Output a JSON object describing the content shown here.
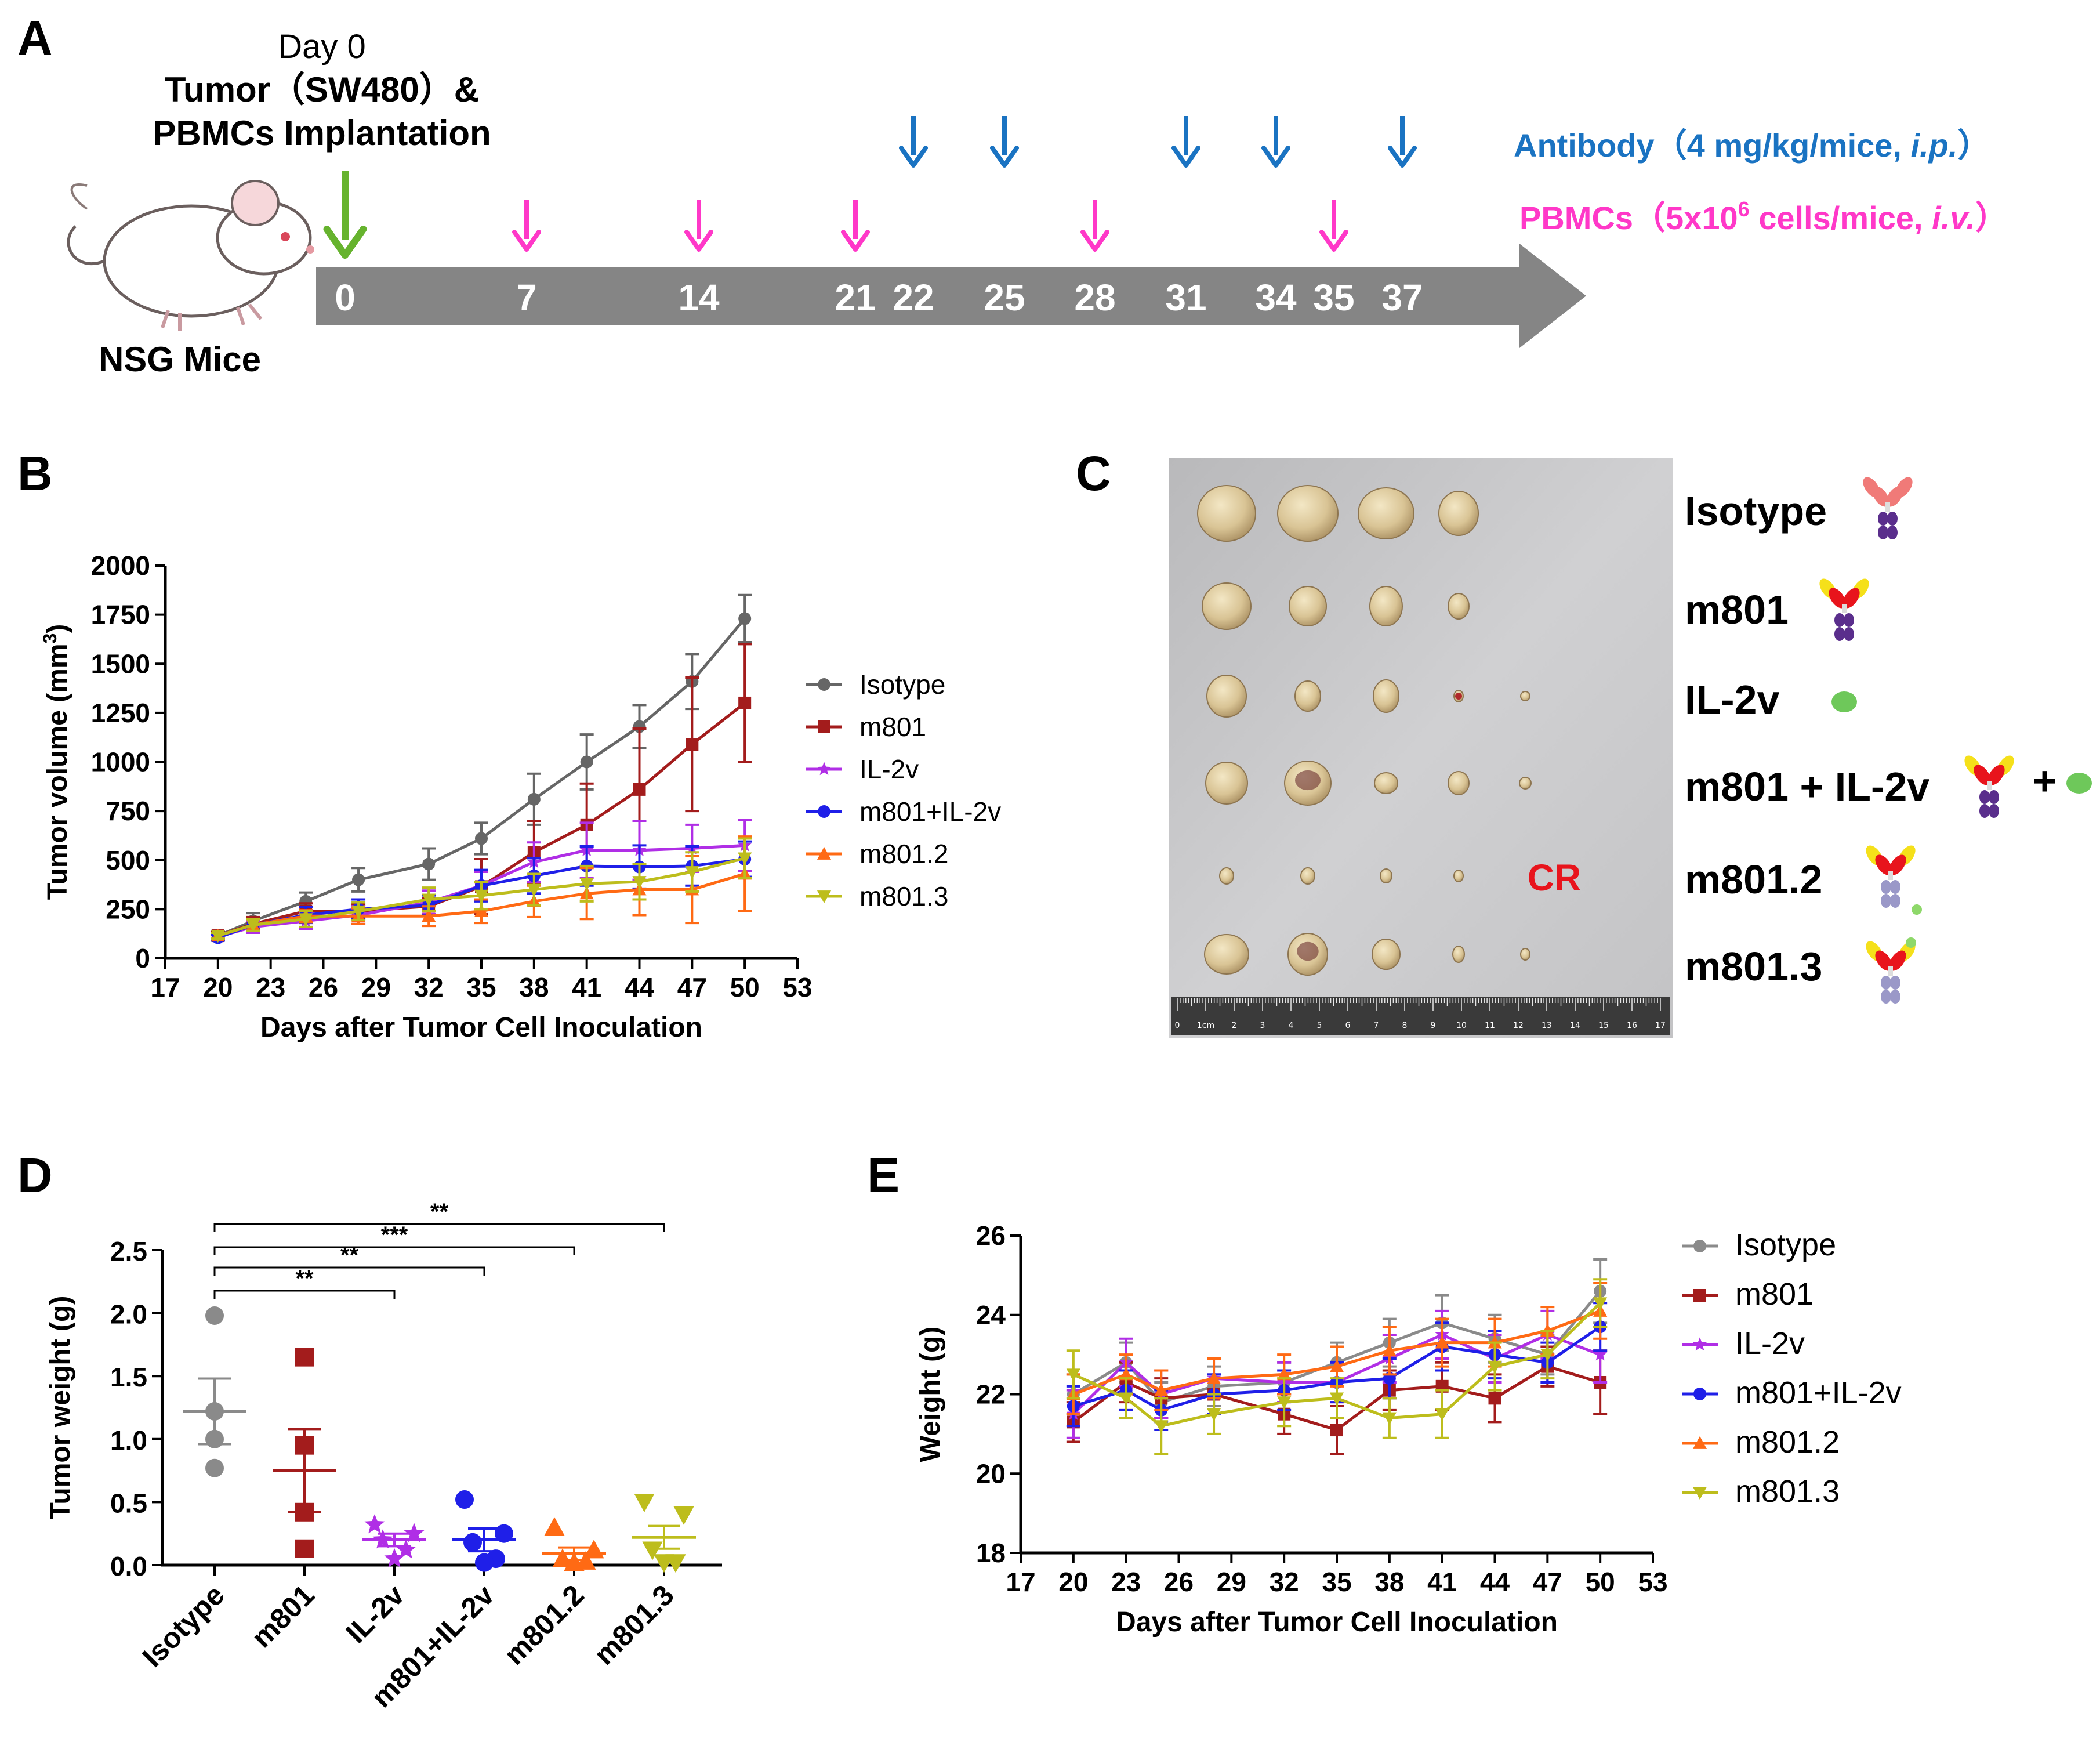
{
  "panels": {
    "a": "A",
    "b": "B",
    "c": "C",
    "d": "D",
    "e": "E"
  },
  "timeline": {
    "day0": "Day 0",
    "title1": "Tumor（SW480）&",
    "title2": "PBMCs Implantation",
    "mouse_label": "NSG Mice",
    "antibody_text": "Antibody（4 mg/kg/mice, ",
    "antibody_italic": "i.p.",
    "antibody_end": "）",
    "pbmc_text": "PBMCs（5x10",
    "pbmc_sup": "6",
    "pbmc_text2": " cells/mice, ",
    "pbmc_italic": "i.v.",
    "pbmc_end": "）",
    "days": [
      "0",
      "7",
      "14",
      "21",
      "22",
      "25",
      "28",
      "31",
      "34",
      "35",
      "37"
    ],
    "highlight_day": "22",
    "antibody_days": [
      22,
      25,
      31,
      34,
      37
    ],
    "pbmc_days": [
      7,
      14,
      21,
      28,
      35
    ],
    "implant_day": 0,
    "colors": {
      "antibody": "#1a73c2",
      "pbmc": "#ff38c8",
      "implant": "#66b32e",
      "highlight": "#f5e800",
      "bar": "#858585"
    }
  },
  "photo": {
    "cr_label": "CR",
    "groups": [
      "Isotype",
      "m801",
      "IL-2v",
      "m801 + IL-2v",
      "m801.2",
      "m801.3"
    ],
    "plus": "+",
    "ruler_labels": [
      "0",
      "1cm",
      "2",
      "3",
      "4",
      "5",
      "6",
      "7",
      "8",
      "9",
      "10",
      "11",
      "12",
      "13",
      "14",
      "15",
      "16",
      "17"
    ]
  },
  "chart_data": [
    {
      "id": "B",
      "type": "line",
      "title": "",
      "xlabel": "Days after Tumor Cell Inoculation",
      "ylabel": "Tumor volume (mm",
      "ylabel_sup": "3",
      "ylabel_end": ")",
      "xlim": [
        17,
        53
      ],
      "ylim": [
        0,
        2000
      ],
      "xticks": [
        17,
        20,
        23,
        26,
        29,
        32,
        35,
        38,
        41,
        44,
        47,
        50,
        53
      ],
      "yticks": [
        0,
        250,
        500,
        750,
        1000,
        1250,
        1500,
        1750,
        2000
      ],
      "x": [
        20,
        22,
        25,
        28,
        32,
        35,
        38,
        41,
        44,
        47,
        50
      ],
      "series": [
        {
          "name": "Isotype",
          "color": "#666666",
          "marker": "circle",
          "values": [
            115,
            190,
            290,
            400,
            480,
            610,
            810,
            1000,
            1180,
            1410,
            1730
          ],
          "err": [
            20,
            40,
            45,
            60,
            80,
            80,
            130,
            140,
            110,
            140,
            120
          ]
        },
        {
          "name": "m801",
          "color": "#a31c1c",
          "marker": "square",
          "values": [
            115,
            175,
            240,
            240,
            265,
            365,
            540,
            680,
            860,
            1090,
            1300
          ],
          "err": [
            18,
            35,
            40,
            35,
            40,
            140,
            160,
            210,
            310,
            340,
            300
          ]
        },
        {
          "name": "IL-2v",
          "color": "#b02ee6",
          "marker": "star",
          "values": [
            110,
            160,
            190,
            220,
            285,
            370,
            490,
            550,
            550,
            560,
            575
          ],
          "err": [
            15,
            30,
            40,
            45,
            60,
            70,
            100,
            140,
            150,
            120,
            130
          ]
        },
        {
          "name": "m801+IL-2v",
          "color": "#1f1fe8",
          "marker": "circle",
          "values": [
            105,
            170,
            220,
            250,
            270,
            370,
            420,
            470,
            465,
            470,
            505
          ],
          "err": [
            15,
            30,
            40,
            50,
            50,
            80,
            90,
            100,
            110,
            100,
            90
          ]
        },
        {
          "name": "m801.2",
          "color": "#ff6a14",
          "marker": "triangle",
          "values": [
            115,
            170,
            215,
            215,
            215,
            240,
            290,
            330,
            350,
            350,
            430
          ],
          "err": [
            15,
            30,
            30,
            40,
            50,
            60,
            80,
            130,
            130,
            170,
            190
          ]
        },
        {
          "name": "m801.3",
          "color": "#bdbd1c",
          "marker": "triangle-down",
          "values": [
            115,
            170,
            200,
            240,
            300,
            320,
            350,
            380,
            390,
            440,
            510
          ],
          "err": [
            15,
            30,
            40,
            45,
            60,
            70,
            80,
            90,
            90,
            100,
            100
          ]
        }
      ]
    },
    {
      "id": "D",
      "type": "scatter",
      "ylabel": "Tumor weight (g)",
      "ylim": [
        0,
        2.5
      ],
      "yticks": [
        0.0,
        0.5,
        1.0,
        1.5,
        2.0,
        2.5
      ],
      "ytick_labels": [
        "0.0",
        "0.5",
        "1.0",
        "1.5",
        "2.0",
        "2.5"
      ],
      "categories": [
        "Isotype",
        "m801",
        "IL-2v",
        "m801+IL-2v",
        "m801.2",
        "m801.3"
      ],
      "groups": [
        {
          "name": "Isotype",
          "color": "#8a8a8a",
          "marker": "circle",
          "points": [
            1.98,
            1.22,
            1.0,
            0.77
          ],
          "mean": 1.22,
          "sem": 0.26
        },
        {
          "name": "m801",
          "color": "#a31c1c",
          "marker": "square",
          "points": [
            1.65,
            0.95,
            0.42,
            0.13
          ],
          "mean": 0.75,
          "sem": 0.33
        },
        {
          "name": "IL-2v",
          "color": "#b02ee6",
          "marker": "star",
          "points": [
            0.32,
            0.25,
            0.2,
            0.12,
            0.05
          ],
          "mean": 0.2,
          "sem": 0.05
        },
        {
          "name": "m801+IL-2v",
          "color": "#1f1fe8",
          "marker": "circle",
          "points": [
            0.52,
            0.25,
            0.18,
            0.05,
            0.02
          ],
          "mean": 0.2,
          "sem": 0.09
        },
        {
          "name": "m801.2",
          "color": "#ff6a14",
          "marker": "triangle",
          "points": [
            0.3,
            0.12,
            0.05,
            0.03,
            0.02
          ],
          "mean": 0.09,
          "sem": 0.05
        },
        {
          "name": "m801.3",
          "color": "#bdbd1c",
          "marker": "triangle-down",
          "points": [
            0.5,
            0.4,
            0.12,
            0.02,
            0.02
          ],
          "mean": 0.22,
          "sem": 0.09
        }
      ],
      "significance": [
        {
          "label": "**",
          "from": "Isotype",
          "to": "IL-2v"
        },
        {
          "label": "**",
          "from": "Isotype",
          "to": "m801+IL-2v"
        },
        {
          "label": "***",
          "from": "Isotype",
          "to": "m801.2"
        },
        {
          "label": "**",
          "from": "Isotype",
          "to": "m801.3"
        }
      ]
    },
    {
      "id": "E",
      "type": "line",
      "xlabel": "Days after Tumor Cell Inoculation",
      "ylabel": "Weight (g)",
      "xlim": [
        17,
        53
      ],
      "ylim": [
        18,
        26
      ],
      "xticks": [
        17,
        20,
        23,
        26,
        29,
        32,
        35,
        38,
        41,
        44,
        47,
        50,
        53
      ],
      "yticks": [
        18,
        20,
        22,
        24,
        26
      ],
      "x": [
        20,
        23,
        25,
        28,
        32,
        35,
        38,
        41,
        44,
        47,
        50
      ],
      "series": [
        {
          "name": "Isotype",
          "color": "#8a8a8a",
          "marker": "circle",
          "values": [
            22.0,
            22.8,
            21.8,
            22.2,
            22.3,
            22.8,
            23.3,
            23.8,
            23.4,
            23.0,
            24.6
          ],
          "err": [
            0.5,
            0.5,
            0.5,
            0.5,
            0.5,
            0.5,
            0.6,
            0.7,
            0.6,
            0.5,
            0.8
          ]
        },
        {
          "name": "m801",
          "color": "#a31c1c",
          "marker": "square",
          "values": [
            21.3,
            22.3,
            21.9,
            22.0,
            21.5,
            21.1,
            22.1,
            22.2,
            21.9,
            22.7,
            22.3
          ],
          "err": [
            0.5,
            0.5,
            0.5,
            0.5,
            0.5,
            0.6,
            0.5,
            0.6,
            0.6,
            0.5,
            0.8
          ]
        },
        {
          "name": "IL-2v",
          "color": "#b02ee6",
          "marker": "star",
          "values": [
            21.5,
            22.8,
            22.0,
            22.4,
            22.3,
            22.3,
            22.9,
            23.5,
            22.9,
            23.5,
            23.0
          ],
          "err": [
            0.6,
            0.6,
            0.6,
            0.5,
            0.5,
            0.5,
            0.6,
            0.6,
            0.6,
            0.6,
            0.7
          ]
        },
        {
          "name": "m801+IL-2v",
          "color": "#1f1fe8",
          "marker": "circle",
          "values": [
            21.7,
            22.1,
            21.6,
            22.0,
            22.1,
            22.3,
            22.4,
            23.2,
            23.0,
            22.8,
            23.7
          ],
          "err": [
            0.5,
            0.5,
            0.5,
            0.5,
            0.5,
            0.5,
            0.5,
            0.6,
            0.6,
            0.5,
            0.6
          ]
        },
        {
          "name": "m801.2",
          "color": "#ff6a14",
          "marker": "triangle",
          "values": [
            22.0,
            22.5,
            22.1,
            22.4,
            22.5,
            22.7,
            23.1,
            23.3,
            23.3,
            23.6,
            24.1
          ],
          "err": [
            0.5,
            0.5,
            0.5,
            0.5,
            0.5,
            0.5,
            0.6,
            0.6,
            0.6,
            0.6,
            0.7
          ]
        },
        {
          "name": "m801.3",
          "color": "#bdbd1c",
          "marker": "triangle-down",
          "values": [
            22.5,
            21.9,
            21.2,
            21.5,
            21.8,
            21.9,
            21.4,
            21.5,
            22.7,
            23.0,
            24.3
          ],
          "err": [
            0.6,
            0.5,
            0.7,
            0.5,
            0.6,
            0.5,
            0.5,
            0.6,
            0.6,
            0.6,
            0.6
          ]
        }
      ]
    }
  ]
}
